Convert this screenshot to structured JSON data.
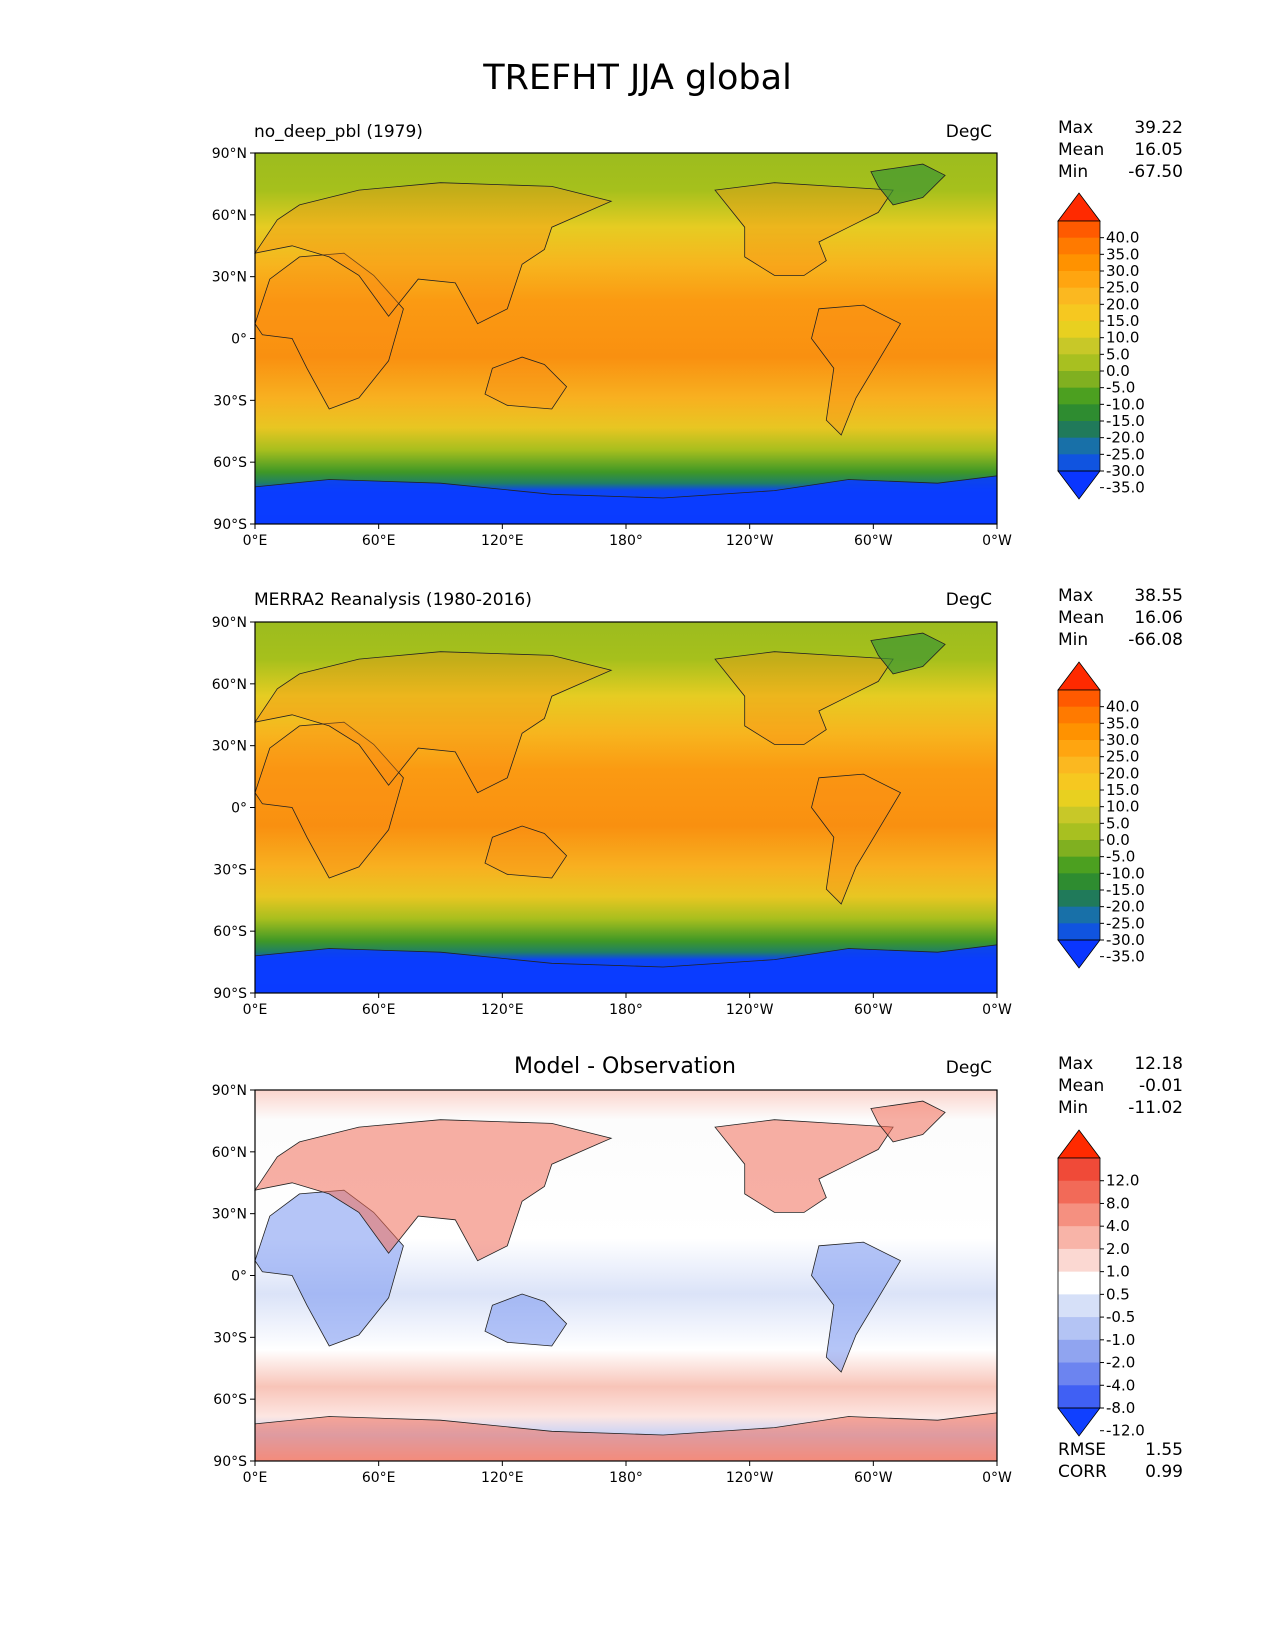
{
  "title": "TREFHT JJA global",
  "lat_ticks": [
    "90°N",
    "60°N",
    "30°N",
    "0°",
    "30°S",
    "60°S",
    "90°S"
  ],
  "lon_ticks": [
    "0°E",
    "60°E",
    "120°E",
    "180°",
    "120°W",
    "60°W",
    "0°W"
  ],
  "panels": [
    {
      "left_title": "no_deep_pbl (1979)",
      "center_title": "",
      "units": "DegC",
      "stats": [
        {
          "label": "Max",
          "value": "39.22"
        },
        {
          "label": "Mean",
          "value": "16.05"
        },
        {
          "label": "Min",
          "value": "-67.50"
        }
      ],
      "colorbar_labels": [
        "40.0",
        "35.0",
        "30.0",
        "25.0",
        "20.0",
        "15.0",
        "10.0",
        "5.0",
        "0.0",
        "-5.0",
        "-10.0",
        "-15.0",
        "-20.0",
        "-25.0",
        "-30.0",
        "-35.0"
      ],
      "colorbar_colors": [
        "#ff2a00",
        "#ff5a00",
        "#ff7a00",
        "#ff9200",
        "#ffa510",
        "#fbb820",
        "#f6c820",
        "#e8d020",
        "#c8c828",
        "#a8c020",
        "#80b020",
        "#4ca020",
        "#2e8c30",
        "#207a5a",
        "#1870a8",
        "#1054e0",
        "#0a36ff"
      ],
      "extra_stats": []
    },
    {
      "left_title": "MERRA2 Reanalysis (1980-2016)",
      "center_title": "",
      "units": "DegC",
      "stats": [
        {
          "label": "Max",
          "value": "38.55"
        },
        {
          "label": "Mean",
          "value": "16.06"
        },
        {
          "label": "Min",
          "value": "-66.08"
        }
      ],
      "colorbar_labels": [
        "40.0",
        "35.0",
        "30.0",
        "25.0",
        "20.0",
        "15.0",
        "10.0",
        "5.0",
        "0.0",
        "-5.0",
        "-10.0",
        "-15.0",
        "-20.0",
        "-25.0",
        "-30.0",
        "-35.0"
      ],
      "colorbar_colors": [
        "#ff2a00",
        "#ff5a00",
        "#ff7a00",
        "#ff9200",
        "#ffa510",
        "#fbb820",
        "#f6c820",
        "#e8d020",
        "#c8c828",
        "#a8c020",
        "#80b020",
        "#4ca020",
        "#2e8c30",
        "#207a5a",
        "#1870a8",
        "#1054e0",
        "#0a36ff"
      ],
      "extra_stats": []
    },
    {
      "left_title": "",
      "center_title": "Model - Observation",
      "units": "DegC",
      "stats": [
        {
          "label": "Max",
          "value": "12.18"
        },
        {
          "label": "Mean",
          "value": "-0.01"
        },
        {
          "label": "Min",
          "value": "-11.02"
        }
      ],
      "colorbar_labels": [
        "12.0",
        "8.0",
        "4.0",
        "2.0",
        "1.0",
        "0.5",
        "-0.5",
        "-1.0",
        "-2.0",
        "-4.0",
        "-8.0",
        "-12.0"
      ],
      "colorbar_colors": [
        "#ff2a00",
        "#f04a38",
        "#f26a58",
        "#f59080",
        "#f8b4a8",
        "#fbd8d2",
        "#ffffff",
        "#d6e0f8",
        "#b4c4f4",
        "#90a4f0",
        "#6c84f0",
        "#4060f4",
        "#1040ff"
      ],
      "extra_stats": [
        {
          "label": "RMSE",
          "value": "1.55"
        },
        {
          "label": "CORR",
          "value": "0.99"
        }
      ]
    }
  ]
}
